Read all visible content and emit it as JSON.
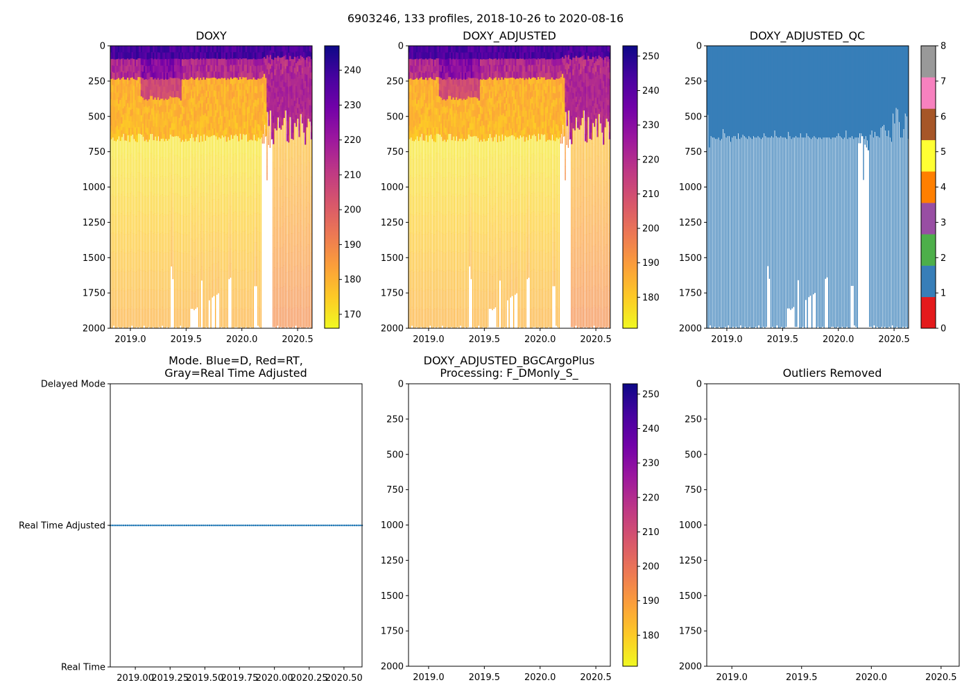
{
  "suptitle": "6903246, 133 profiles, 2018-10-26 to 2020-08-16",
  "chart_data": [
    {
      "id": "doxy",
      "type": "heatmap",
      "title": "DOXY",
      "x_range": [
        2018.82,
        2020.63
      ],
      "y_range": [
        2000,
        0
      ],
      "x_ticks": [
        "2019.0",
        "2019.5",
        "2020.0",
        "2020.5"
      ],
      "x_tick_values": [
        2019.0,
        2019.5,
        2020.0,
        2020.5
      ],
      "y_ticks": [
        "0",
        "250",
        "500",
        "750",
        "1000",
        "1250",
        "1500",
        "1750",
        "2000"
      ],
      "y_tick_values": [
        0,
        250,
        500,
        750,
        1000,
        1250,
        1500,
        1750,
        2000
      ],
      "colorbar": {
        "colormap": "plasma_r",
        "range": [
          166,
          247
        ],
        "ticks": [
          "170",
          "180",
          "190",
          "200",
          "210",
          "220",
          "230",
          "240"
        ],
        "tick_values": [
          170,
          180,
          190,
          200,
          210,
          220,
          230,
          240
        ]
      }
    },
    {
      "id": "doxy_adjusted",
      "type": "heatmap",
      "title": "DOXY_ADJUSTED",
      "x_range": [
        2018.82,
        2020.63
      ],
      "y_range": [
        2000,
        0
      ],
      "x_ticks": [
        "2019.0",
        "2019.5",
        "2020.0",
        "2020.5"
      ],
      "x_tick_values": [
        2019.0,
        2019.5,
        2020.0,
        2020.5
      ],
      "y_ticks": [
        "0",
        "250",
        "500",
        "750",
        "1000",
        "1250",
        "1500",
        "1750",
        "2000"
      ],
      "y_tick_values": [
        0,
        250,
        500,
        750,
        1000,
        1250,
        1500,
        1750,
        2000
      ],
      "colorbar": {
        "colormap": "plasma_r",
        "range": [
          171,
          253
        ],
        "ticks": [
          "180",
          "190",
          "200",
          "210",
          "220",
          "230",
          "240",
          "250"
        ],
        "tick_values": [
          180,
          190,
          200,
          210,
          220,
          230,
          240,
          250
        ]
      }
    },
    {
      "id": "doxy_adjusted_qc",
      "type": "heatmap",
      "title": "DOXY_ADJUSTED_QC",
      "x_range": [
        2018.82,
        2020.63
      ],
      "y_range": [
        2000,
        0
      ],
      "x_ticks": [
        "2019.0",
        "2019.5",
        "2020.0",
        "2020.5"
      ],
      "x_tick_values": [
        2019.0,
        2019.5,
        2020.0,
        2020.5
      ],
      "y_ticks": [
        "0",
        "250",
        "500",
        "750",
        "1000",
        "1250",
        "1500",
        "1750",
        "2000"
      ],
      "y_tick_values": [
        0,
        250,
        500,
        750,
        1000,
        1250,
        1500,
        1750,
        2000
      ],
      "qc_value": 1,
      "qc_color": "#377eb8",
      "colorbar": {
        "range": [
          0,
          8
        ],
        "ticks": [
          "0",
          "1",
          "2",
          "3",
          "4",
          "5",
          "6",
          "7",
          "8"
        ],
        "tick_values": [
          0,
          1,
          2,
          3,
          4,
          5,
          6,
          7,
          8
        ],
        "segments": [
          "#e41a1c",
          "#377eb8",
          "#4daf4a",
          "#984ea3",
          "#ff7f00",
          "#ffff33",
          "#a65628",
          "#f781bf",
          "#999999"
        ]
      }
    },
    {
      "id": "mode",
      "type": "scatter",
      "title": "Mode. Blue=D, Red=RT,",
      "title_line2": "Gray=Real Time Adjusted",
      "x_range": [
        2018.82,
        2020.63
      ],
      "y_range": [
        0,
        2
      ],
      "x_ticks": [
        "2019.00",
        "2019.25",
        "2019.50",
        "2019.75",
        "2020.00",
        "2020.25",
        "2020.50"
      ],
      "x_tick_values": [
        2019.0,
        2019.25,
        2019.5,
        2019.75,
        2020.0,
        2020.25,
        2020.5
      ],
      "y_ticks": [
        "Real Time",
        "Real Time Adjusted",
        "Delayed Mode"
      ],
      "y_tick_values": [
        0,
        1,
        2
      ],
      "series": [
        {
          "name": "profiles",
          "y": 1,
          "count": 133,
          "x_start": 2018.82,
          "x_end": 2020.63,
          "color": "#1f77b4"
        }
      ]
    },
    {
      "id": "bgc_plus",
      "type": "heatmap",
      "title": "DOXY_ADJUSTED_BGCArgoPlus",
      "title_line2": "Processing: F_DMonly_S_",
      "x_range": [
        2018.82,
        2020.63
      ],
      "y_range": [
        2000,
        0
      ],
      "x_ticks": [
        "2019.0",
        "2019.5",
        "2020.0",
        "2020.5"
      ],
      "x_tick_values": [
        2019.0,
        2019.5,
        2020.0,
        2020.5
      ],
      "y_ticks": [
        "0",
        "250",
        "500",
        "750",
        "1000",
        "1250",
        "1500",
        "1750",
        "2000"
      ],
      "y_tick_values": [
        0,
        250,
        500,
        750,
        1000,
        1250,
        1500,
        1750,
        2000
      ],
      "colorbar": {
        "colormap": "plasma_r",
        "range": [
          171,
          253
        ],
        "ticks": [
          "180",
          "190",
          "200",
          "210",
          "220",
          "230",
          "240",
          "250"
        ],
        "tick_values": [
          180,
          190,
          200,
          210,
          220,
          230,
          240,
          250
        ]
      }
    },
    {
      "id": "outliers",
      "type": "heatmap",
      "title": "Outliers Removed",
      "x_range": [
        2018.82,
        2020.63
      ],
      "y_range": [
        2000,
        0
      ],
      "x_ticks": [
        "2019.0",
        "2019.5",
        "2020.0",
        "2020.5"
      ],
      "x_tick_values": [
        2019.0,
        2019.5,
        2020.0,
        2020.5
      ],
      "y_ticks": [
        "0",
        "250",
        "500",
        "750",
        "1000",
        "1250",
        "1500",
        "1750",
        "2000"
      ],
      "y_tick_values": [
        0,
        250,
        500,
        750,
        1000,
        1250,
        1500,
        1750,
        2000
      ]
    }
  ],
  "profiles": {
    "count": 133,
    "max_depth_dbar": [
      2000,
      2000,
      1980,
      2000,
      2000,
      1990,
      2000,
      2000,
      1990,
      2000,
      2000,
      2000,
      1990,
      2000,
      1980,
      2000,
      2000,
      1990,
      2000,
      1990,
      2000,
      2000,
      1980,
      2000,
      2000,
      1990,
      2000,
      2000,
      1990,
      2000,
      2000,
      2000,
      1990,
      2000,
      1980,
      2000,
      2000,
      1990,
      2000,
      1990,
      1560,
      1650,
      2000,
      1990,
      2000,
      2000,
      1980,
      2000,
      2000,
      1990,
      2000,
      2000,
      1990,
      1860,
      1860,
      1870,
      1860,
      1850,
      1990,
      1990,
      1660,
      2000,
      2000,
      1990,
      2000,
      1800,
      2000,
      1780,
      1770,
      2000,
      1760,
      1750,
      2000,
      1990,
      2000,
      2000,
      1990,
      2000,
      1650,
      1640,
      2000,
      2000,
      1990,
      1990,
      2000,
      2000,
      1990,
      2000,
      2000,
      1990,
      2000,
      2000,
      1990,
      2000,
      2000,
      1700,
      1700,
      1980,
      1990,
      2000,
      690,
      690,
      640,
      950,
      700,
      720,
      660,
      1990,
      1990,
      2000,
      1980,
      2000,
      1990,
      2000,
      2000,
      1990,
      2000,
      1990,
      2000,
      2000,
      1990,
      2000,
      1980,
      2000,
      2000,
      1990,
      2000,
      2000,
      2000,
      1990,
      2000,
      1990,
      2000
    ],
    "adj_qc_depth_dbar": [
      490,
      720,
      640,
      650,
      650,
      660,
      660,
      650,
      670,
      660,
      590,
      620,
      650,
      640,
      640,
      680,
      650,
      640,
      640,
      660,
      620,
      660,
      650,
      630,
      640,
      650,
      660,
      640,
      650,
      660,
      640,
      650,
      650,
      640,
      650,
      660,
      650,
      620,
      640,
      650,
      650,
      650,
      640,
      650,
      600,
      640,
      650,
      650,
      640,
      650,
      650,
      650,
      660,
      610,
      640,
      660,
      650,
      650,
      640,
      650,
      650,
      620,
      650,
      650,
      650,
      620,
      640,
      650,
      660,
      650,
      640,
      650,
      660,
      650,
      650,
      660,
      650,
      650,
      650,
      650,
      650,
      660,
      650,
      650,
      650,
      640,
      620,
      640,
      650,
      660,
      650,
      600,
      660,
      650,
      650,
      640,
      660,
      650,
      650,
      650,
      620,
      620,
      640,
      660,
      640,
      670,
      740,
      630,
      600,
      650,
      610,
      640,
      640,
      650,
      580,
      570,
      560,
      600,
      640,
      600,
      650,
      680,
      480,
      550,
      440,
      450,
      540,
      650,
      650,
      590,
      480,
      500,
      660
    ]
  }
}
